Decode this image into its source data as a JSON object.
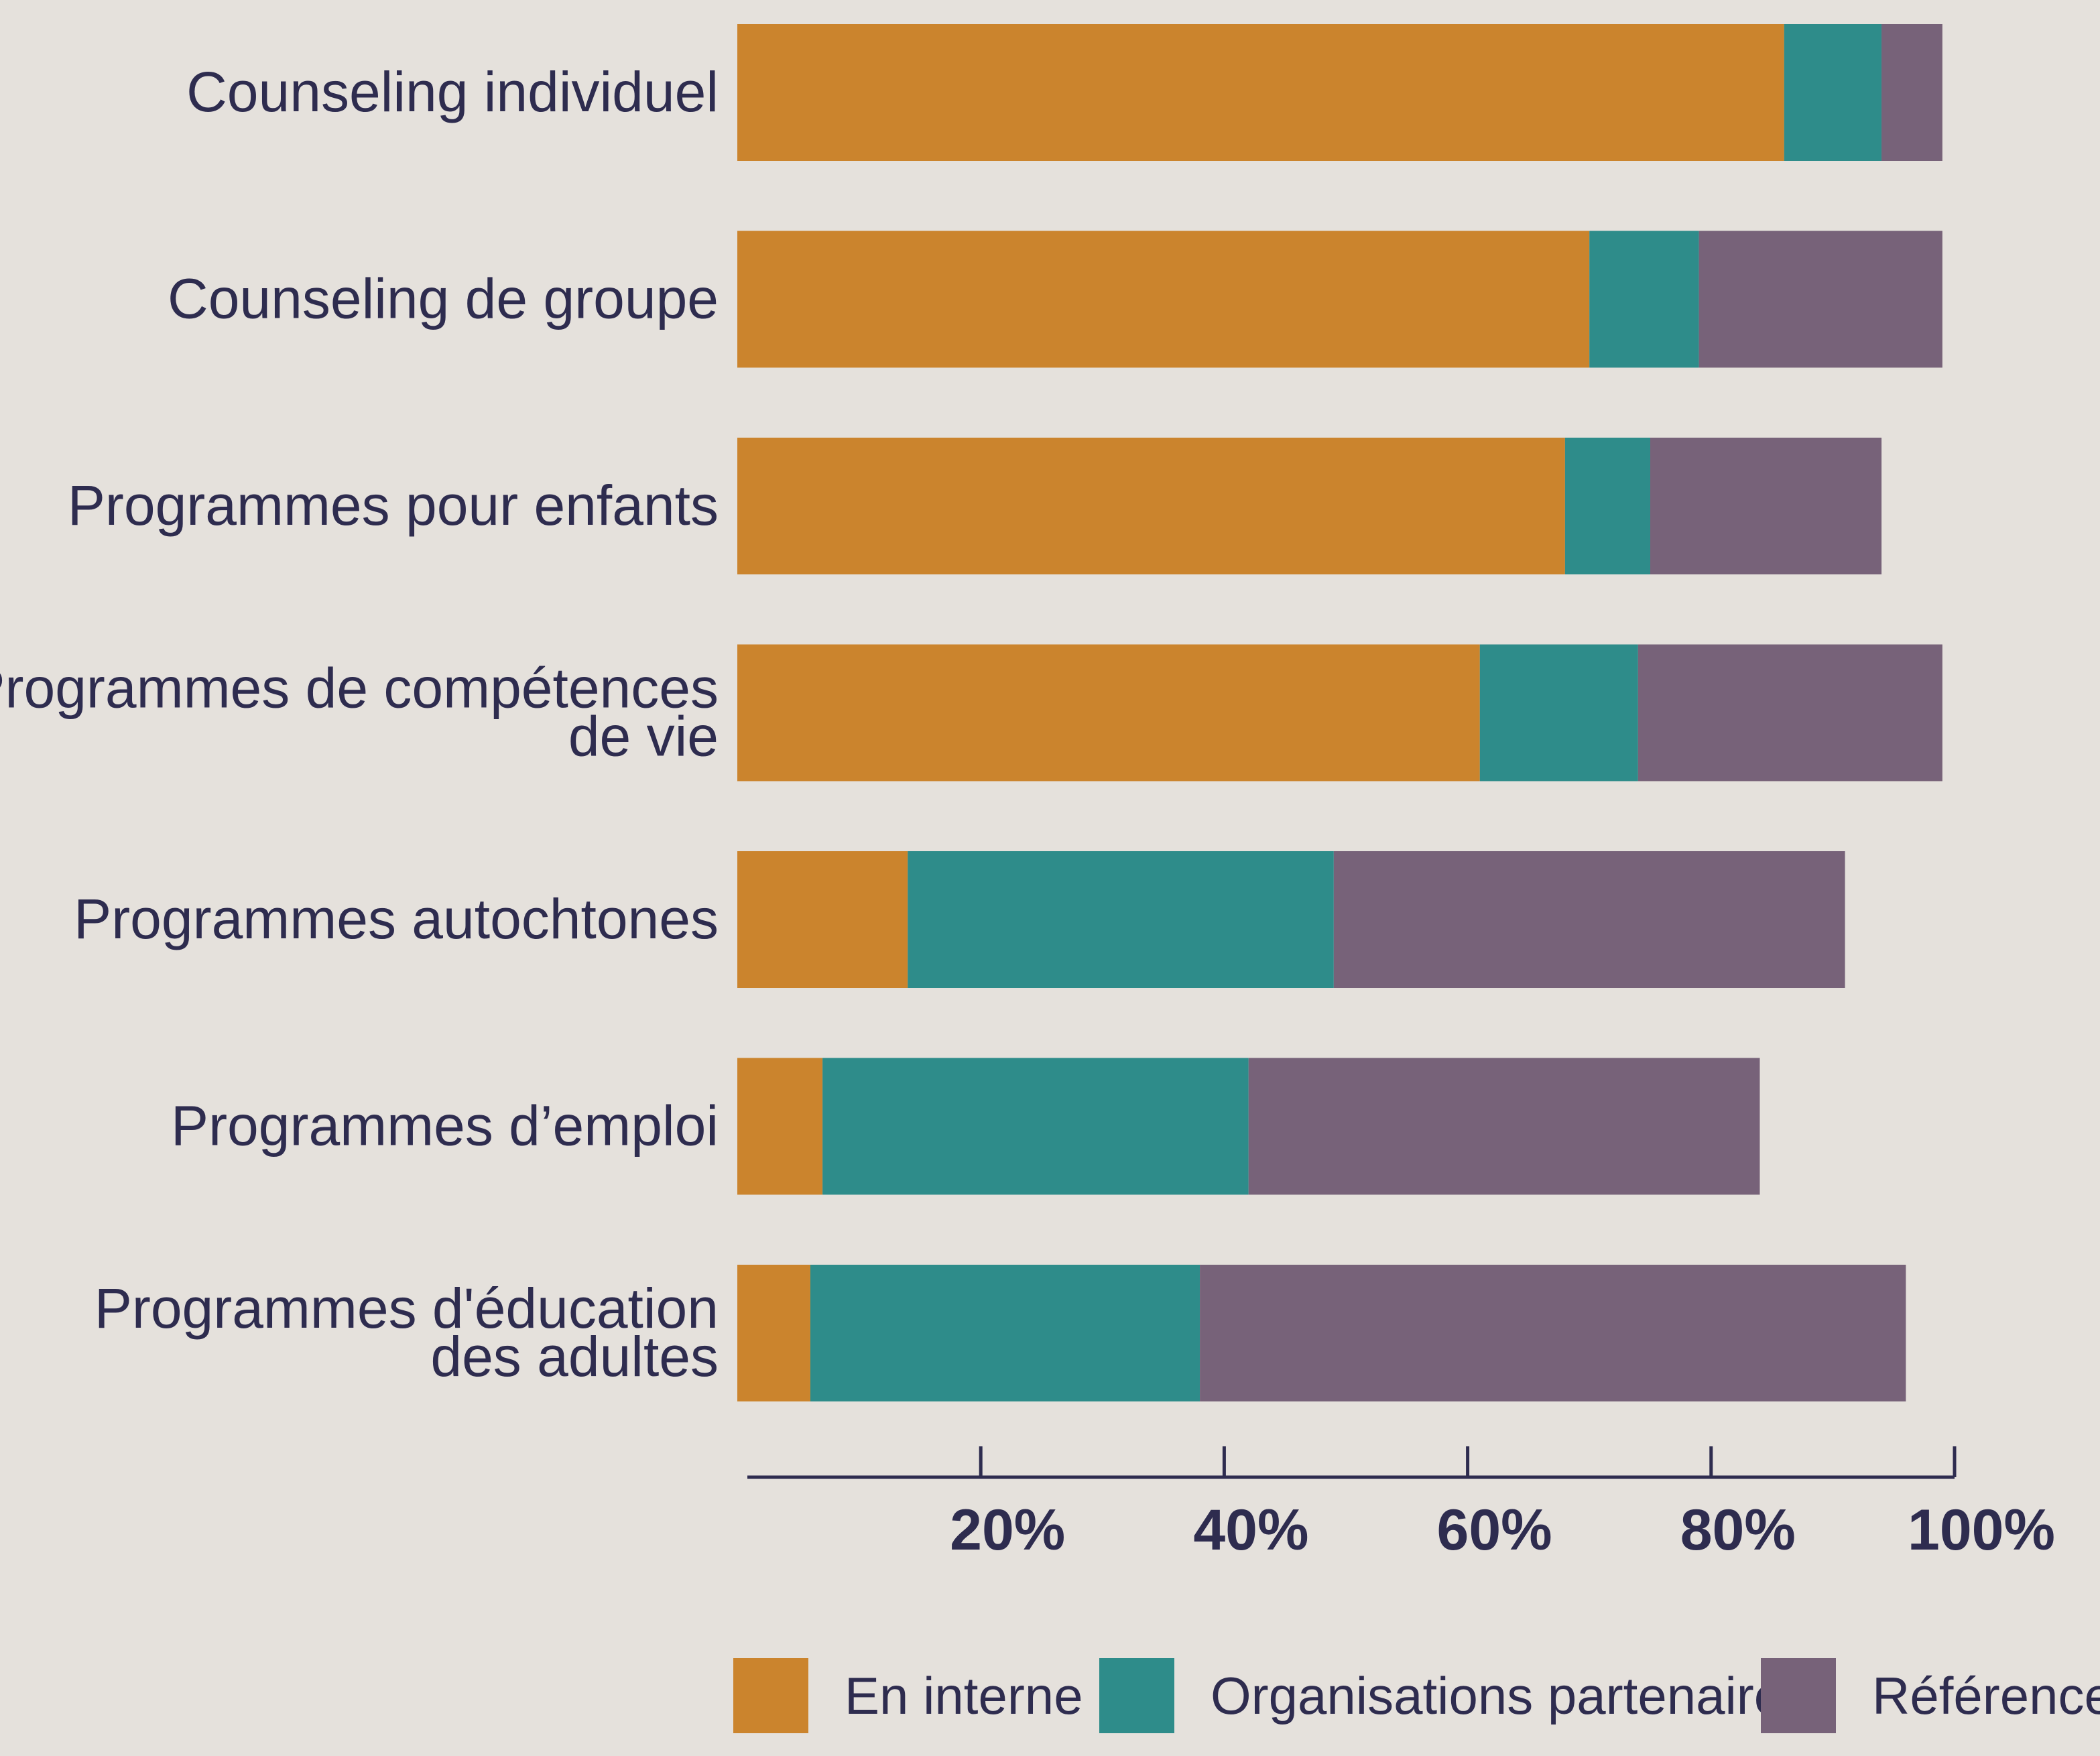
{
  "chart_data": {
    "type": "bar",
    "orientation": "horizontal",
    "stacked": true,
    "categories": [
      "Counseling individuel",
      "Counseling de groupe",
      "Programmes pour enfants",
      "Programmes de compétences de vie",
      "Programmes autochtones",
      "Programmes d’emploi",
      "Programmes d'éducation des adultes"
    ],
    "category_lines": [
      [
        "Counseling individuel"
      ],
      [
        "Counseling de groupe"
      ],
      [
        "Programmes pour enfants"
      ],
      [
        "Programmes de compétences",
        "de vie"
      ],
      [
        "Programmes autochtones"
      ],
      [
        "Programmes d’emploi"
      ],
      [
        "Programmes d'éducation",
        "des adultes"
      ]
    ],
    "series": [
      {
        "name": "En interne",
        "color": "#cb842d",
        "values": [
          86,
          70,
          68,
          61,
          14,
          7,
          6
        ]
      },
      {
        "name": "Organisations partenaires",
        "color": "#2e8c8a",
        "values": [
          8,
          9,
          7,
          13,
          35,
          35,
          32
        ]
      },
      {
        "name": "Références",
        "color": "#776279",
        "values": [
          5,
          20,
          19,
          25,
          42,
          42,
          58
        ]
      }
    ],
    "xlim": [
      0,
      100
    ],
    "xticks": [
      "20%",
      "40%",
      "60%",
      "80%",
      "100%"
    ],
    "xtick_values": [
      20,
      40,
      60,
      80,
      100
    ],
    "title": "",
    "xlabel": "",
    "ylabel": "",
    "legend_position": "bottom",
    "grid": false
  }
}
